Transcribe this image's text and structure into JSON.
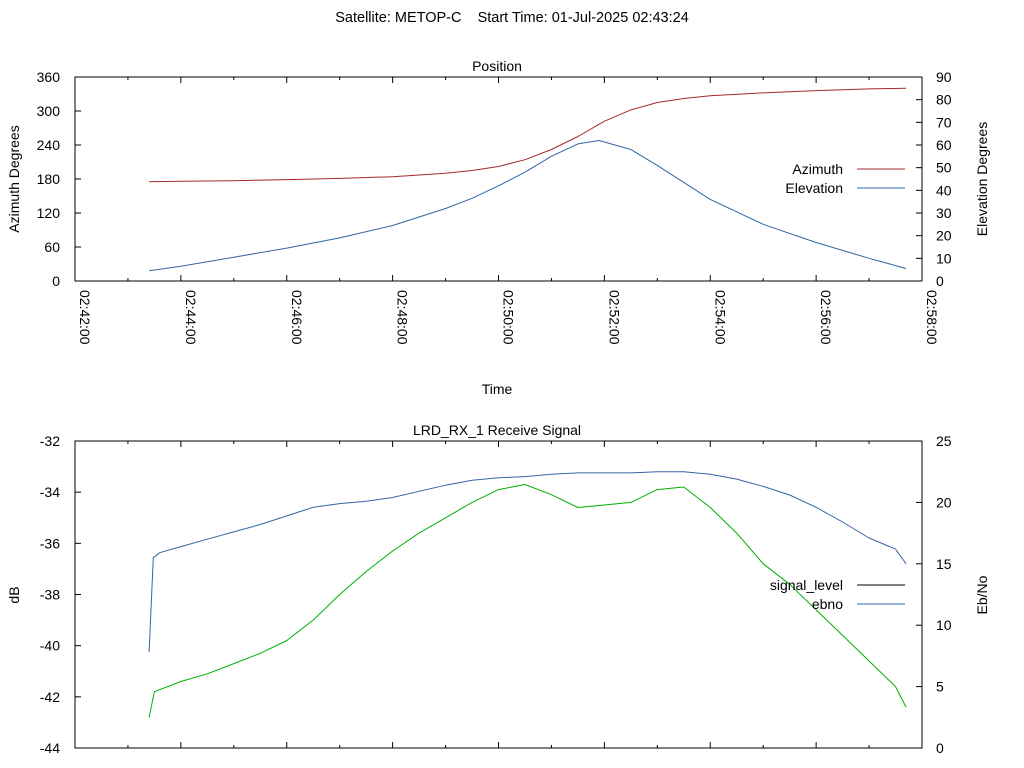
{
  "page_title": "Satellite: METOP-C    Start Time: 01-Jul-2025 02:43:24",
  "colors": {
    "azimuth": "#a52a2a",
    "elevation": "#3465a4",
    "signal_level": "#00b000",
    "ebno": "#3465a4",
    "legend_signal_level": "#000000"
  },
  "chart_data": [
    {
      "type": "line",
      "title": "Position",
      "xlabel": "Time",
      "ylabel": "Azimuth Degrees",
      "y2label": "Elevation Degrees",
      "x_ticks": [
        "02:42:00",
        "02:44:00",
        "02:46:00",
        "02:48:00",
        "02:50:00",
        "02:52:00",
        "02:54:00",
        "02:56:00",
        "02:58:00"
      ],
      "xlim_minutes": [
        0,
        16
      ],
      "ylim": [
        0,
        360
      ],
      "y2lim": [
        0,
        90
      ],
      "y_ticks": [
        0,
        60,
        120,
        180,
        240,
        300,
        360
      ],
      "y2_ticks": [
        0,
        10,
        20,
        30,
        40,
        50,
        60,
        70,
        80,
        90
      ],
      "legend_placement": "right",
      "series": [
        {
          "name": "Azimuth",
          "axis": "y",
          "x_minutes": [
            1.4,
            2,
            3,
            4,
            5,
            6,
            7,
            7.5,
            8,
            8.5,
            9,
            9.5,
            10,
            10.5,
            11,
            11.5,
            12,
            13,
            14,
            15,
            15.7
          ],
          "y": [
            175,
            176,
            177,
            179,
            181,
            184,
            190,
            195,
            202,
            214,
            232,
            255,
            282,
            302,
            315,
            322,
            327,
            332,
            336,
            339,
            340
          ]
        },
        {
          "name": "Elevation",
          "axis": "y2",
          "x_minutes": [
            1.4,
            2,
            3,
            4,
            5,
            6,
            7,
            7.5,
            8,
            8.5,
            9,
            9.5,
            9.9,
            10.5,
            11,
            11.5,
            12,
            13,
            14,
            15,
            15.7
          ],
          "y": [
            4.5,
            6.5,
            10.5,
            14.5,
            19,
            24.5,
            32,
            36.5,
            42,
            48,
            55,
            60.5,
            62,
            58,
            51,
            43.5,
            36,
            25,
            17,
            10,
            5.5
          ]
        }
      ]
    },
    {
      "type": "line",
      "title": "LRD_RX_1 Receive Signal",
      "xlabel": "",
      "ylabel": "dB",
      "y2label": "Eb/No",
      "xlim_minutes": [
        0,
        16
      ],
      "ylim": [
        -44,
        -32
      ],
      "y2lim": [
        0,
        25
      ],
      "y_ticks": [
        -44,
        -42,
        -40,
        -38,
        -36,
        -34,
        -32
      ],
      "y2_ticks": [
        0,
        5,
        10,
        15,
        20,
        25
      ],
      "legend_placement": "right",
      "series": [
        {
          "name": "signal_level",
          "axis": "y",
          "x_minutes": [
            1.4,
            1.5,
            2,
            2.5,
            3,
            3.5,
            4,
            4.5,
            5,
            5.5,
            6,
            6.5,
            7,
            7.5,
            8,
            8.5,
            9,
            9.5,
            10,
            10.5,
            11,
            11.5,
            12,
            12.5,
            13,
            13.5,
            14,
            14.5,
            15,
            15.5,
            15.7
          ],
          "y": [
            -42.8,
            -41.8,
            -41.4,
            -41.1,
            -40.7,
            -40.3,
            -39.8,
            -39.0,
            -38.0,
            -37.1,
            -36.3,
            -35.6,
            -35.0,
            -34.4,
            -33.9,
            -33.7,
            -34.1,
            -34.6,
            -34.5,
            -34.4,
            -33.9,
            -33.8,
            -34.6,
            -35.6,
            -36.8,
            -37.6,
            -38.6,
            -39.6,
            -40.6,
            -41.6,
            -42.4
          ]
        },
        {
          "name": "ebno",
          "axis": "y2",
          "x_minutes": [
            1.4,
            1.48,
            1.6,
            2,
            2.5,
            3,
            3.5,
            4,
            4.5,
            5,
            5.5,
            6,
            6.5,
            7,
            7.5,
            8,
            8.5,
            9,
            9.5,
            10,
            10.5,
            11,
            11.5,
            12,
            12.5,
            13,
            13.5,
            14,
            14.5,
            15,
            15.5,
            15.7
          ],
          "y": [
            7.8,
            15.5,
            15.9,
            16.4,
            17.0,
            17.6,
            18.2,
            18.9,
            19.6,
            19.9,
            20.1,
            20.4,
            20.9,
            21.4,
            21.8,
            22.0,
            22.1,
            22.3,
            22.4,
            22.4,
            22.4,
            22.5,
            22.5,
            22.3,
            21.9,
            21.3,
            20.6,
            19.6,
            18.4,
            17.1,
            16.2,
            15.0
          ]
        }
      ]
    }
  ]
}
